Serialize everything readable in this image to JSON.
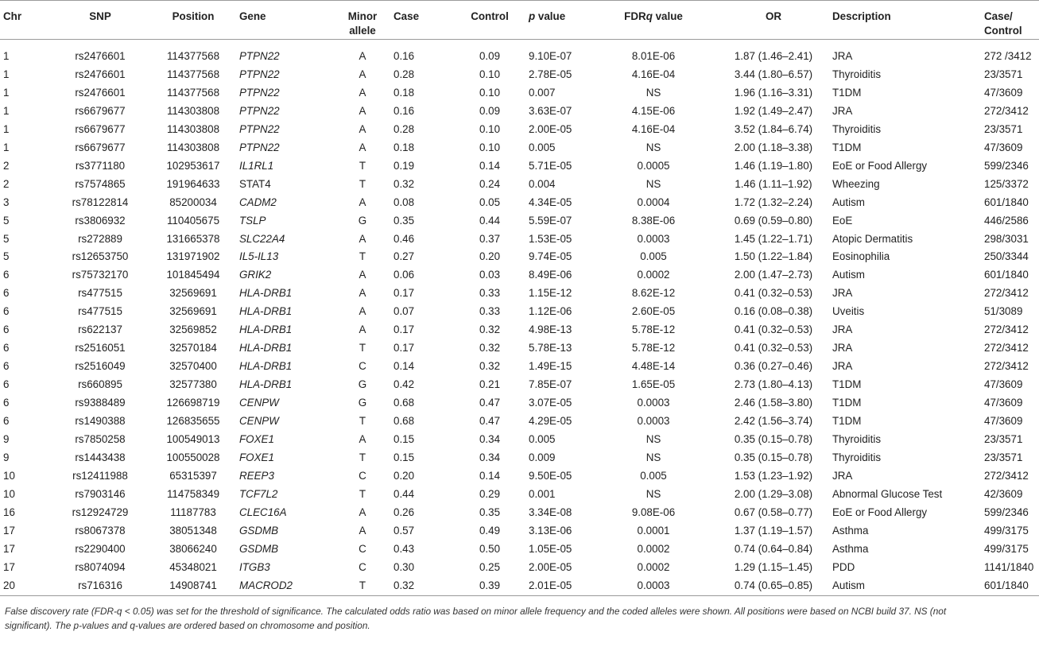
{
  "headers": {
    "chr": "Chr",
    "snp": "SNP",
    "position": "Position",
    "gene": "Gene",
    "minor_allele": "Minor allele",
    "case": "Case",
    "control": "Control",
    "p_value_italic": "p",
    "p_value_rest": " value",
    "fdr_prefix": "FDR",
    "fdr_italic": "q",
    "fdr_rest": " value",
    "or": "OR",
    "description": "Description",
    "case_control": "Case/ Control"
  },
  "rows": [
    {
      "chr": "1",
      "snp": "rs2476601",
      "position": "114377568",
      "gene": "PTPN22",
      "allele": "A",
      "case": "0.16",
      "control": "0.09",
      "p": "9.10E-07",
      "fdr": "8.01E-06",
      "or": "1.87 (1.46–2.41)",
      "description": "JRA",
      "cc": "272 /3412"
    },
    {
      "chr": "1",
      "snp": "rs2476601",
      "position": "114377568",
      "gene": "PTPN22",
      "allele": "A",
      "case": "0.28",
      "control": "0.10",
      "p": "2.78E-05",
      "fdr": "4.16E-04",
      "or": "3.44 (1.80–6.57)",
      "description": "Thyroiditis",
      "cc": "23/3571"
    },
    {
      "chr": "1",
      "snp": "rs2476601",
      "position": "114377568",
      "gene": "PTPN22",
      "allele": "A",
      "case": "0.18",
      "control": "0.10",
      "p": "0.007",
      "fdr": "NS",
      "or": "1.96 (1.16–3.31)",
      "description": "T1DM",
      "cc": "47/3609"
    },
    {
      "chr": "1",
      "snp": "rs6679677",
      "position": "114303808",
      "gene": "PTPN22",
      "allele": "A",
      "case": "0.16",
      "control": "0.09",
      "p": "3.63E-07",
      "fdr": "4.15E-06",
      "or": "1.92 (1.49–2.47)",
      "description": "JRA",
      "cc": "272/3412"
    },
    {
      "chr": "1",
      "snp": "rs6679677",
      "position": "114303808",
      "gene": "PTPN22",
      "allele": "A",
      "case": "0.28",
      "control": "0.10",
      "p": "2.00E-05",
      "fdr": "4.16E-04",
      "or": "3.52 (1.84–6.74)",
      "description": "Thyroiditis",
      "cc": "23/3571"
    },
    {
      "chr": "1",
      "snp": "rs6679677",
      "position": "114303808",
      "gene": "PTPN22",
      "allele": "A",
      "case": "0.18",
      "control": "0.10",
      "p": "0.005",
      "fdr": "NS",
      "or": "2.00 (1.18–3.38)",
      "description": "T1DM",
      "cc": "47/3609"
    },
    {
      "chr": "2",
      "snp": "rs3771180",
      "position": "102953617",
      "gene": "IL1RL1",
      "allele": "T",
      "case": "0.19",
      "control": "0.14",
      "p": "5.71E-05",
      "fdr": "0.0005",
      "or": "1.46 (1.19–1.80)",
      "description": "EoE or Food Allergy",
      "cc": "599/2346"
    },
    {
      "chr": "2",
      "snp": "rs7574865",
      "position": "191964633",
      "gene": "STAT4",
      "gene_plain": true,
      "allele": "T",
      "case": "0.32",
      "control": "0.24",
      "p": "0.004",
      "fdr": "NS",
      "or": "1.46 (1.11–1.92)",
      "description": "Wheezing",
      "cc": "125/3372"
    },
    {
      "chr": "3",
      "snp": "rs78122814",
      "position": "85200034",
      "gene": "CADM2",
      "allele": "A",
      "case": "0.08",
      "control": "0.05",
      "p": "4.34E-05",
      "fdr": "0.0004",
      "or": "1.72 (1.32–2.24)",
      "description": "Autism",
      "cc": "601/1840"
    },
    {
      "chr": "5",
      "snp": "rs3806932",
      "position": "110405675",
      "gene": "TSLP",
      "allele": "G",
      "case": "0.35",
      "control": "0.44",
      "p": "5.59E-07",
      "fdr": "8.38E-06",
      "or": "0.69 (0.59–0.80)",
      "description": "EoE",
      "cc": "446/2586"
    },
    {
      "chr": "5",
      "snp": "rs272889",
      "position": "131665378",
      "gene": "SLC22A4",
      "allele": "A",
      "case": "0.46",
      "control": "0.37",
      "p": "1.53E-05",
      "fdr": "0.0003",
      "or": "1.45 (1.22–1.71)",
      "description": "Atopic Dermatitis",
      "cc": "298/3031"
    },
    {
      "chr": "5",
      "snp": "rs12653750",
      "position": "131971902",
      "gene": "IL5-IL13",
      "allele": "T",
      "case": "0.27",
      "control": "0.20",
      "p": "9.74E-05",
      "fdr": "0.005",
      "or": "1.50 (1.22–1.84)",
      "description": "Eosinophilia",
      "cc": "250/3344"
    },
    {
      "chr": "6",
      "snp": "rs75732170",
      "position": "101845494",
      "gene": "GRIK2",
      "allele": "A",
      "case": "0.06",
      "control": "0.03",
      "p": "8.49E-06",
      "fdr": "0.0002",
      "or": "2.00 (1.47–2.73)",
      "description": "Autism",
      "cc": "601/1840"
    },
    {
      "chr": "6",
      "snp": "rs477515",
      "position": "32569691",
      "gene": "HLA-DRB1",
      "allele": "A",
      "case": "0.17",
      "control": "0.33",
      "p": "1.15E-12",
      "fdr": "8.62E-12",
      "or": "0.41 (0.32–0.53)",
      "description": "JRA",
      "cc": "272/3412"
    },
    {
      "chr": "6",
      "snp": "rs477515",
      "position": "32569691",
      "gene": "HLA-DRB1",
      "allele": "A",
      "case": "0.07",
      "control": "0.33",
      "p": "1.12E-06",
      "fdr": "2.60E-05",
      "or": "0.16 (0.08–0.38)",
      "description": "Uveitis",
      "cc": "51/3089"
    },
    {
      "chr": "6",
      "snp": "rs622137",
      "position": "32569852",
      "gene": "HLA-DRB1",
      "allele": "A",
      "case": "0.17",
      "control": "0.32",
      "p": "4.98E-13",
      "fdr": "5.78E-12",
      "or": "0.41 (0.32–0.53)",
      "description": "JRA",
      "cc": "272/3412"
    },
    {
      "chr": "6",
      "snp": "rs2516051",
      "position": "32570184",
      "gene": "HLA-DRB1",
      "allele": "T",
      "case": "0.17",
      "control": "0.32",
      "p": "5.78E-13",
      "fdr": "5.78E-12",
      "or": "0.41 (0.32–0.53)",
      "description": "JRA",
      "cc": "272/3412"
    },
    {
      "chr": "6",
      "snp": "rs2516049",
      "position": "32570400",
      "gene": "HLA-DRB1",
      "allele": "C",
      "case": "0.14",
      "control": "0.32",
      "p": "1.49E-15",
      "fdr": "4.48E-14",
      "or": "0.36 (0.27–0.46)",
      "description": "JRA",
      "cc": "272/3412"
    },
    {
      "chr": "6",
      "snp": "rs660895",
      "position": "32577380",
      "gene": "HLA-DRB1",
      "allele": "G",
      "case": "0.42",
      "control": "0.21",
      "p": "7.85E-07",
      "fdr": "1.65E-05",
      "or": "2.73 (1.80–4.13)",
      "description": "T1DM",
      "cc": "47/3609"
    },
    {
      "chr": "6",
      "snp": "rs9388489",
      "position": "126698719",
      "gene": "CENPW",
      "allele": "G",
      "case": "0.68",
      "control": "0.47",
      "p": "3.07E-05",
      "fdr": "0.0003",
      "or": "2.46 (1.58–3.80)",
      "description": "T1DM",
      "cc": "47/3609"
    },
    {
      "chr": "6",
      "snp": "rs1490388",
      "position": "126835655",
      "gene": "CENPW",
      "allele": "T",
      "case": "0.68",
      "control": "0.47",
      "p": "4.29E-05",
      "fdr": "0.0003",
      "or": "2.42 (1.56–3.74)",
      "description": "T1DM",
      "cc": "47/3609"
    },
    {
      "chr": "9",
      "snp": "rs7850258",
      "position": "100549013",
      "gene": "FOXE1",
      "allele": "A",
      "case": "0.15",
      "control": "0.34",
      "p": "0.005",
      "fdr": "NS",
      "or": "0.35 (0.15–0.78)",
      "description": "Thyroiditis",
      "cc": "23/3571"
    },
    {
      "chr": "9",
      "snp": "rs1443438",
      "position": "100550028",
      "gene": "FOXE1",
      "allele": "T",
      "case": "0.15",
      "control": "0.34",
      "p": "0.009",
      "fdr": "NS",
      "or": "0.35 (0.15–0.78)",
      "description": "Thyroiditis",
      "cc": "23/3571"
    },
    {
      "chr": "10",
      "snp": "rs12411988",
      "position": "65315397",
      "gene": "REEP3",
      "allele": "C",
      "case": "0.20",
      "control": "0.14",
      "p": "9.50E-05",
      "fdr": "0.005",
      "or": "1.53 (1.23–1.92)",
      "description": "JRA",
      "cc": "272/3412"
    },
    {
      "chr": "10",
      "snp": "rs7903146",
      "position": "114758349",
      "gene": "TCF7L2",
      "allele": "T",
      "case": "0.44",
      "control": "0.29",
      "p": "0.001",
      "fdr": "NS",
      "or": "2.00 (1.29–3.08)",
      "description": "Abnormal Glucose Test",
      "cc": "42/3609"
    },
    {
      "chr": "16",
      "snp": "rs12924729",
      "position": "11187783",
      "gene": "CLEC16A",
      "allele": "A",
      "case": "0.26",
      "control": "0.35",
      "p": "3.34E-08",
      "fdr": "9.08E-06",
      "or": "0.67 (0.58–0.77)",
      "description": "EoE or Food Allergy",
      "cc": "599/2346"
    },
    {
      "chr": "17",
      "snp": "rs8067378",
      "position": "38051348",
      "gene": "GSDMB",
      "allele": "A",
      "case": "0.57",
      "control": "0.49",
      "p": "3.13E-06",
      "fdr": "0.0001",
      "or": "1.37 (1.19–1.57)",
      "description": "Asthma",
      "cc": "499/3175"
    },
    {
      "chr": "17",
      "snp": "rs2290400",
      "position": "38066240",
      "gene": "GSDMB",
      "allele": "C",
      "case": "0.43",
      "control": "0.50",
      "p": "1.05E-05",
      "fdr": "0.0002",
      "or": "0.74 (0.64–0.84)",
      "description": "Asthma",
      "cc": "499/3175"
    },
    {
      "chr": "17",
      "snp": "rs8074094",
      "position": "45348021",
      "gene": "ITGB3",
      "allele": "C",
      "case": "0.30",
      "control": "0.25",
      "p": "2.00E-05",
      "fdr": "0.0002",
      "or": "1.29 (1.15–1.45)",
      "description": "PDD",
      "cc": "1141/1840"
    },
    {
      "chr": "20",
      "snp": "rs716316",
      "position": "14908741",
      "gene": "MACROD2",
      "allele": "T",
      "case": "0.32",
      "control": "0.39",
      "p": "2.01E-05",
      "fdr": "0.0003",
      "or": "0.74 (0.65–0.85)",
      "description": "Autism",
      "cc": "601/1840"
    }
  ],
  "footnote": "False discovery rate (FDR-q < 0.05) was set for the threshold of significance. The calculated odds ratio was based on minor allele frequency and the coded alleles were shown. All positions were based on NCBI build 37. NS (not significant). The p-values and q-values are ordered based on chromosome and position."
}
